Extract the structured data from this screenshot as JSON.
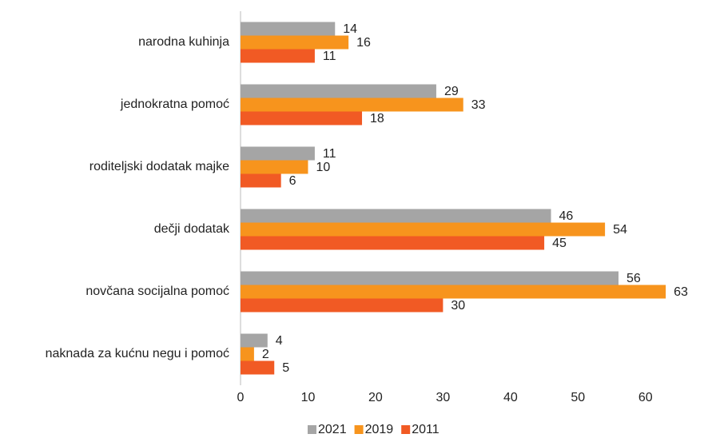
{
  "chart_data": {
    "type": "bar",
    "orientation": "horizontal",
    "categories": [
      "narodna kuhinja",
      "jednokratna pomoć",
      "roditeljski dodatak majke",
      "dečji dodatak",
      "novčana socijalna pomoć",
      "naknada za kućnu negu i pomoć"
    ],
    "series": [
      {
        "name": "2021",
        "color": "#a5a5a5",
        "values": [
          14,
          29,
          11,
          46,
          56,
          4
        ]
      },
      {
        "name": "2019",
        "color": "#f7941d",
        "values": [
          16,
          33,
          10,
          54,
          63,
          2
        ]
      },
      {
        "name": "2011",
        "color": "#f15a24",
        "values": [
          11,
          18,
          6,
          45,
          30,
          5
        ]
      }
    ],
    "xlim": [
      0,
      65
    ],
    "xticks": [
      0,
      10,
      20,
      30,
      40,
      50,
      60
    ],
    "grid": false,
    "legend": "bottom"
  }
}
